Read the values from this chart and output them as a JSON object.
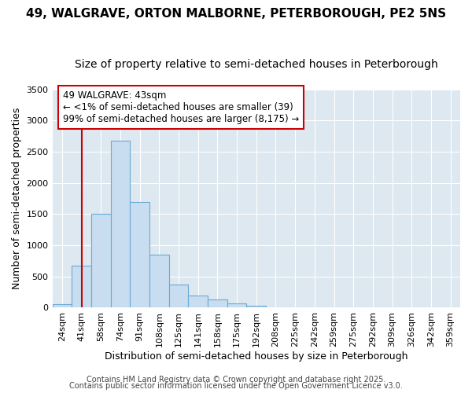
{
  "title": "49, WALGRAVE, ORTON MALBORNE, PETERBOROUGH, PE2 5NS",
  "subtitle": "Size of property relative to semi-detached houses in Peterborough",
  "xlabel": "Distribution of semi-detached houses by size in Peterborough",
  "ylabel": "Number of semi-detached properties",
  "categories": [
    "24sqm",
    "41sqm",
    "58sqm",
    "74sqm",
    "91sqm",
    "108sqm",
    "125sqm",
    "141sqm",
    "158sqm",
    "175sqm",
    "192sqm",
    "208sqm",
    "225sqm",
    "242sqm",
    "259sqm",
    "275sqm",
    "292sqm",
    "309sqm",
    "326sqm",
    "342sqm",
    "359sqm"
  ],
  "values": [
    50,
    680,
    1500,
    2680,
    1700,
    850,
    370,
    200,
    130,
    70,
    30,
    0,
    0,
    0,
    0,
    0,
    0,
    0,
    0,
    0,
    0
  ],
  "bar_color": "#c8ddf0",
  "bar_edge_color": "#6aaad4",
  "background_color": "#dde8f0",
  "fig_background": "#ffffff",
  "grid_color": "#ffffff",
  "vline_color": "#cc0000",
  "vline_x": 1.0,
  "ylim": [
    0,
    3500
  ],
  "yticks": [
    0,
    500,
    1000,
    1500,
    2000,
    2500,
    3000,
    3500
  ],
  "annotation_text": "49 WALGRAVE: 43sqm\n← <1% of semi-detached houses are smaller (39)\n99% of semi-detached houses are larger (8,175) →",
  "footer1": "Contains HM Land Registry data © Crown copyright and database right 2025.",
  "footer2": "Contains public sector information licensed under the Open Government Licence v3.0.",
  "title_fontsize": 11,
  "subtitle_fontsize": 10,
  "tick_fontsize": 8,
  "ylabel_fontsize": 9,
  "xlabel_fontsize": 9,
  "footer_fontsize": 7,
  "annot_fontsize": 8.5
}
